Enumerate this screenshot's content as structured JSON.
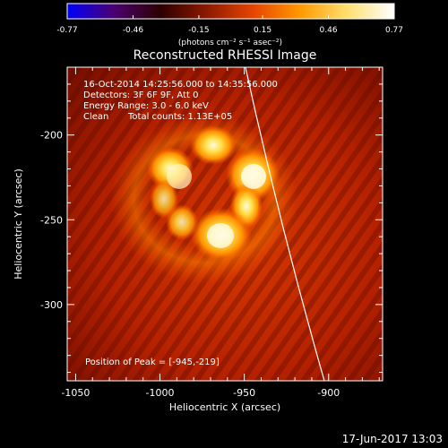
{
  "colorbar": {
    "ticks": [
      "-0.77",
      "-0.46",
      "-0.15",
      "0.15",
      "0.46",
      "0.77"
    ],
    "tick_values": [
      -0.77,
      -0.46,
      -0.15,
      0.15,
      0.46,
      0.77
    ],
    "range": [
      -0.77,
      0.77
    ],
    "unit_label": "(photons cm⁻² s⁻¹ asec⁻²)",
    "stops": [
      "#0000ff",
      "#4b006f",
      "#2b0000",
      "#8f1a00",
      "#e84500",
      "#ff9a00",
      "#ffe070",
      "#ffffff"
    ]
  },
  "title": "Reconstructed RHESSI Image",
  "annotations": {
    "time_range": "16-Oct-2014 14:25:56.000 to 14:35:56.000",
    "detectors": "Detectors: 3F 6F 9F, Att 0",
    "energy_range": "Energy Range: 3.0 - 6.0 keV",
    "clean_label": "Clean",
    "total_counts": "Total counts: 1.13E+05",
    "peak_position": "Position of Peak = [-945,-219]"
  },
  "axes": {
    "xlabel": "Heliocentric X (arcsec)",
    "ylabel": "Heliocentric Y (arcsec)",
    "xticks": [
      "-1050",
      "-1000",
      "-950",
      "-900"
    ],
    "xtick_values": [
      -1050,
      -1000,
      -950,
      -900
    ],
    "yticks": [
      "-200",
      "-250",
      "-300"
    ],
    "ytick_values": [
      -200,
      -250,
      -300
    ],
    "xlim": [
      -1055,
      -868
    ],
    "ylim": [
      -345,
      -160
    ]
  },
  "footer_date": "17-Jun-2017 13:03"
}
